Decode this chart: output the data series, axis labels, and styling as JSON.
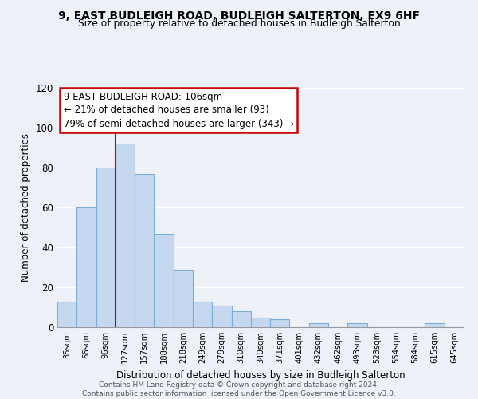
{
  "title": "9, EAST BUDLEIGH ROAD, BUDLEIGH SALTERTON, EX9 6HF",
  "subtitle": "Size of property relative to detached houses in Budleigh Salterton",
  "xlabel": "Distribution of detached houses by size in Budleigh Salterton",
  "ylabel": "Number of detached properties",
  "bin_labels": [
    "35sqm",
    "66sqm",
    "96sqm",
    "127sqm",
    "157sqm",
    "188sqm",
    "218sqm",
    "249sqm",
    "279sqm",
    "310sqm",
    "340sqm",
    "371sqm",
    "401sqm",
    "432sqm",
    "462sqm",
    "493sqm",
    "523sqm",
    "554sqm",
    "584sqm",
    "615sqm",
    "645sqm"
  ],
  "bar_values": [
    13,
    60,
    80,
    92,
    77,
    47,
    29,
    13,
    11,
    8,
    5,
    4,
    0,
    2,
    0,
    2,
    0,
    0,
    0,
    2,
    0
  ],
  "bar_color": "#c5d8f0",
  "bar_edge_color": "#7aadd4",
  "vline_color": "#cc0000",
  "vline_position": 2.5,
  "annotation_text_line1": "9 EAST BUDLEIGH ROAD: 106sqm",
  "annotation_text_line2": "← 21% of detached houses are smaller (93)",
  "annotation_text_line3": "79% of semi-detached houses are larger (343) →",
  "ylim": [
    0,
    120
  ],
  "yticks": [
    0,
    20,
    40,
    60,
    80,
    100,
    120
  ],
  "footer_line1": "Contains HM Land Registry data © Crown copyright and database right 2024.",
  "footer_line2": "Contains public sector information licensed under the Open Government Licence v3.0.",
  "background_color": "#eef2f8",
  "grid_color": "#ffffff"
}
